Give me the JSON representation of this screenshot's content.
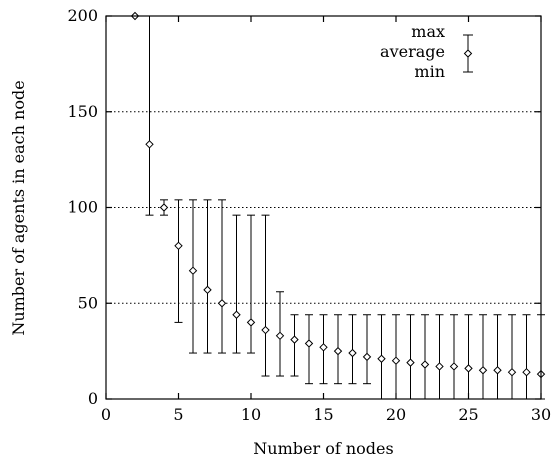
{
  "chart_data": {
    "type": "scatter",
    "xlabel": "Number of nodes",
    "ylabel": "Number of agents in each node",
    "xlim": [
      0,
      30
    ],
    "ylim": [
      0,
      200
    ],
    "x_ticks": [
      "0",
      "5",
      "10",
      "15",
      "20",
      "25",
      "30"
    ],
    "y_ticks": [
      "0",
      "50",
      "100",
      "150",
      "200"
    ],
    "grid": "horizontal dotted at 50, 100, 150",
    "legend": {
      "position": "top-right",
      "entries": [
        "max",
        "average",
        "min"
      ]
    },
    "series": [
      {
        "x": [
          2,
          3,
          4,
          5,
          6,
          7,
          8,
          9,
          10,
          11,
          12,
          13,
          14,
          15,
          16,
          17,
          18,
          19,
          20,
          21,
          22,
          23,
          24,
          25,
          26,
          27,
          28,
          29,
          30
        ],
        "avg": [
          200,
          133,
          100,
          80,
          67,
          57,
          50,
          44,
          40,
          36,
          33,
          31,
          29,
          27,
          25,
          24,
          22,
          21,
          20,
          19,
          18,
          17,
          17,
          16,
          15,
          15,
          14,
          14,
          13
        ],
        "min": [
          200,
          96,
          96,
          40,
          24,
          24,
          24,
          24,
          24,
          12,
          12,
          12,
          8,
          8,
          8,
          8,
          8,
          0,
          0,
          0,
          0,
          0,
          0,
          0,
          0,
          0,
          0,
          0,
          0
        ],
        "max": [
          200,
          200,
          104,
          104,
          104,
          104,
          104,
          96,
          96,
          96,
          56,
          44,
          44,
          44,
          44,
          44,
          44,
          44,
          44,
          44,
          44,
          44,
          44,
          44,
          44,
          44,
          44,
          44,
          44
        ]
      }
    ]
  }
}
